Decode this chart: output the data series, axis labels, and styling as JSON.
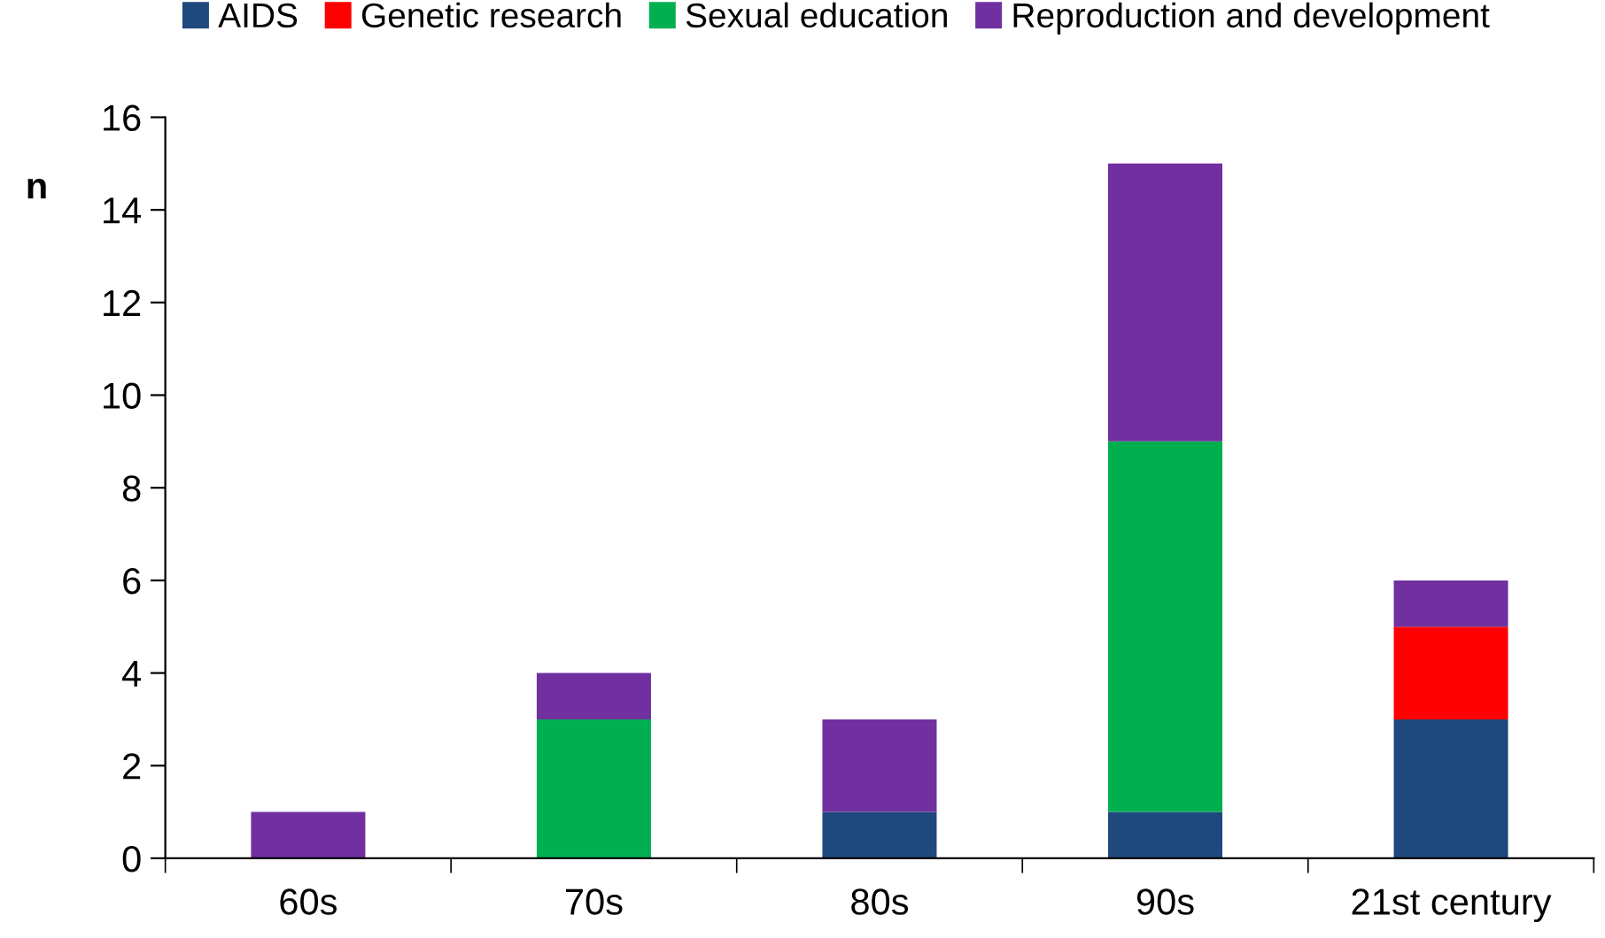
{
  "chart_data": {
    "type": "bar",
    "stacked": true,
    "ylabel": "n",
    "categories": [
      "60s",
      "70s",
      "80s",
      "90s",
      "21st century"
    ],
    "series": [
      {
        "name": "AIDS",
        "color": "#1f497d",
        "values": [
          0,
          0,
          1,
          1,
          3
        ]
      },
      {
        "name": "Genetic research",
        "color": "#ff0000",
        "values": [
          0,
          0,
          0,
          0,
          2
        ]
      },
      {
        "name": "Sexual education",
        "color": "#00b050",
        "values": [
          0,
          3,
          0,
          8,
          0
        ]
      },
      {
        "name": "Reproduction and development",
        "color": "#7030a0",
        "values": [
          1,
          1,
          2,
          6,
          1
        ]
      }
    ],
    "ylim": [
      0,
      16
    ],
    "yticks": [
      0,
      2,
      4,
      6,
      8,
      10,
      12,
      14,
      16
    ],
    "grid": false,
    "legend": "top"
  }
}
